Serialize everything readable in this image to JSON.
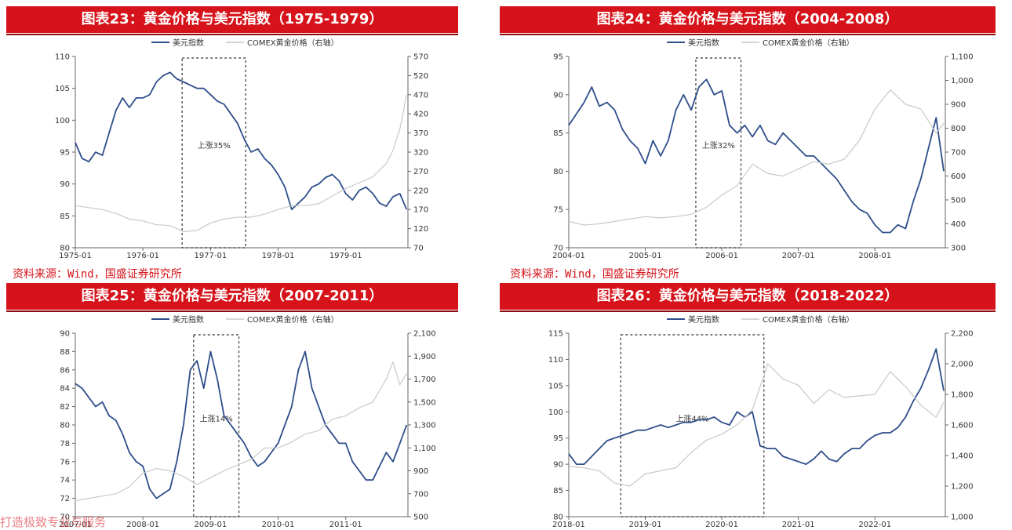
{
  "sources": [
    "资料来源：Wind，国盛证券研究所",
    "资料来源：Wind，国盛证券研究所"
  ],
  "footer": "打造极致专业与服务",
  "colors": {
    "usd": "#2e4d8a",
    "gold": "#c9c9c9",
    "banner": "#d6131a"
  },
  "chart_data": [
    {
      "type": "line",
      "title": "图表23：黄金价格与美元指数（1975-1979）",
      "legend": [
        "美元指数",
        "COMEX黄金价格（右轴）"
      ],
      "legend_position": "top-center",
      "x_range": [
        1975.0,
        1979.92
      ],
      "x_ticks": [
        {
          "v": 1975.0,
          "label": "1975-01"
        },
        {
          "v": 1976.0,
          "label": "1976-01"
        },
        {
          "v": 1977.0,
          "label": "1977-01"
        },
        {
          "v": 1978.0,
          "label": "1978-01"
        },
        {
          "v": 1979.0,
          "label": "1979-01"
        }
      ],
      "ylim": [
        80,
        110
      ],
      "y_ticks": [
        80,
        85,
        90,
        95,
        100,
        105,
        110
      ],
      "y2lim": [
        70,
        570
      ],
      "y2_ticks": [
        70,
        120,
        170,
        220,
        270,
        320,
        370,
        420,
        470,
        520,
        570
      ],
      "grid": false,
      "series": [
        {
          "name": "美元指数",
          "axis": "left",
          "x": [
            1975.0,
            1975.1,
            1975.2,
            1975.3,
            1975.4,
            1975.5,
            1975.6,
            1975.7,
            1975.8,
            1975.9,
            1976.0,
            1976.1,
            1976.2,
            1976.3,
            1976.4,
            1976.5,
            1976.6,
            1976.7,
            1976.8,
            1976.9,
            1977.0,
            1977.1,
            1977.2,
            1977.3,
            1977.4,
            1977.5,
            1977.6,
            1977.7,
            1977.8,
            1977.9,
            1978.0,
            1978.1,
            1978.2,
            1978.3,
            1978.4,
            1978.5,
            1978.6,
            1978.7,
            1978.8,
            1978.9,
            1979.0,
            1979.1,
            1979.2,
            1979.3,
            1979.4,
            1979.5,
            1979.6,
            1979.7,
            1979.8,
            1979.9
          ],
          "y": [
            96.5,
            94,
            93.5,
            95,
            94.5,
            98,
            101.5,
            103.5,
            102,
            103.5,
            103.5,
            104,
            106,
            107,
            107.5,
            106.5,
            106,
            105.5,
            105,
            105,
            104,
            103,
            102.5,
            101,
            99.5,
            97,
            95,
            95.5,
            94,
            93,
            91.5,
            89.5,
            86,
            87,
            88,
            89.5,
            90,
            91,
            91.5,
            90.5,
            88.5,
            87.5,
            89,
            89.5,
            88.5,
            87,
            86.5,
            88,
            88.5,
            86
          ]
        },
        {
          "name": "COMEX黄金价格（右轴）",
          "axis": "right",
          "x": [
            1975.0,
            1975.2,
            1975.4,
            1975.6,
            1975.8,
            1976.0,
            1976.2,
            1976.4,
            1976.6,
            1976.8,
            1977.0,
            1977.2,
            1977.4,
            1977.6,
            1977.8,
            1978.0,
            1978.2,
            1978.4,
            1978.6,
            1978.8,
            1979.0,
            1979.2,
            1979.4,
            1979.6,
            1979.7,
            1979.8,
            1979.9
          ],
          "y": [
            180,
            175,
            170,
            160,
            145,
            140,
            130,
            128,
            112,
            115,
            135,
            145,
            150,
            150,
            158,
            170,
            180,
            180,
            185,
            205,
            225,
            240,
            255,
            290,
            325,
            380,
            470
          ]
        }
      ],
      "annotations": [
        {
          "text": "上涨35%",
          "box": [
            1976.58,
            1977.52
          ]
        }
      ]
    },
    {
      "type": "line",
      "title": "图表24：黄金价格与美元指数（2004-2008）",
      "legend": [
        "美元指数",
        "COMEX黄金价格（右轴）"
      ],
      "legend_position": "top-center",
      "x_range": [
        2004.0,
        2008.92
      ],
      "x_ticks": [
        {
          "v": 2004.0,
          "label": "2004-01"
        },
        {
          "v": 2005.0,
          "label": "2005-01"
        },
        {
          "v": 2006.0,
          "label": "2006-01"
        },
        {
          "v": 2007.0,
          "label": "2007-01"
        },
        {
          "v": 2008.0,
          "label": "2008-01"
        }
      ],
      "ylim": [
        70,
        95
      ],
      "y_ticks": [
        70,
        75,
        80,
        85,
        90,
        95
      ],
      "y2lim": [
        300,
        1100
      ],
      "y2_ticks": [
        "300",
        "400",
        "500",
        "600",
        "700",
        "800",
        "900",
        "1,000",
        "1,100"
      ],
      "grid": false,
      "series": [
        {
          "name": "美元指数",
          "axis": "left",
          "x": [
            2004.0,
            2004.1,
            2004.2,
            2004.3,
            2004.4,
            2004.5,
            2004.6,
            2004.7,
            2004.8,
            2004.9,
            2005.0,
            2005.1,
            2005.2,
            2005.3,
            2005.4,
            2005.5,
            2005.6,
            2005.7,
            2005.8,
            2005.9,
            2006.0,
            2006.1,
            2006.2,
            2006.3,
            2006.4,
            2006.5,
            2006.6,
            2006.7,
            2006.8,
            2006.9,
            2007.0,
            2007.1,
            2007.2,
            2007.3,
            2007.4,
            2007.5,
            2007.6,
            2007.7,
            2007.8,
            2007.9,
            2008.0,
            2008.1,
            2008.2,
            2008.3,
            2008.4,
            2008.5,
            2008.6,
            2008.7,
            2008.8,
            2008.9
          ],
          "y": [
            86,
            87.5,
            89,
            91,
            88.5,
            89,
            88,
            85.5,
            84,
            83,
            81,
            84,
            82,
            84,
            88,
            90,
            88,
            91,
            92,
            90,
            90.5,
            86,
            85,
            86,
            84.5,
            86,
            84,
            83.5,
            85,
            84,
            83,
            82,
            82,
            81,
            80,
            79,
            77.5,
            76,
            75,
            74.5,
            73,
            72,
            72,
            73,
            72.5,
            76,
            79,
            83,
            87,
            80
          ]
        },
        {
          "name": "COMEX黄金价格（右轴）",
          "axis": "right",
          "x": [
            2004.0,
            2004.2,
            2004.4,
            2004.6,
            2004.8,
            2005.0,
            2005.2,
            2005.4,
            2005.6,
            2005.8,
            2006.0,
            2006.2,
            2006.4,
            2006.6,
            2006.8,
            2007.0,
            2007.2,
            2007.4,
            2007.6,
            2007.8,
            2008.0,
            2008.2,
            2008.4,
            2008.6,
            2008.8,
            2008.9
          ],
          "y": [
            410,
            395,
            400,
            410,
            420,
            430,
            425,
            430,
            440,
            470,
            520,
            560,
            650,
            610,
            600,
            630,
            660,
            650,
            670,
            750,
            880,
            960,
            900,
            880,
            780,
            820
          ]
        }
      ],
      "annotations": [
        {
          "text": "上涨32%",
          "box": [
            2005.66,
            2006.25
          ]
        }
      ]
    },
    {
      "type": "line",
      "title": "图表25：黄金价格与美元指数（2007-2011）",
      "legend": [
        "美元指数",
        "COMEX黄金价格（右轴）"
      ],
      "legend_position": "top-center",
      "x_range": [
        2007.0,
        2011.92
      ],
      "x_ticks": [
        {
          "v": 2007.0,
          "label": "2007-01"
        },
        {
          "v": 2008.0,
          "label": "2008-01"
        },
        {
          "v": 2009.0,
          "label": "2009-01"
        },
        {
          "v": 2010.0,
          "label": "2010-01"
        },
        {
          "v": 2011.0,
          "label": "2011-01"
        }
      ],
      "ylim": [
        70,
        90
      ],
      "y_ticks": [
        70,
        72,
        74,
        76,
        78,
        80,
        82,
        84,
        86,
        88,
        90
      ],
      "y2lim": [
        500,
        2100
      ],
      "y2_ticks": [
        "500",
        "700",
        "900",
        "1,100",
        "1,300",
        "1,500",
        "1,700",
        "1,900",
        "2,100"
      ],
      "grid": false,
      "series": [
        {
          "name": "美元指数",
          "axis": "left",
          "x": [
            2007.0,
            2007.1,
            2007.2,
            2007.3,
            2007.4,
            2007.5,
            2007.6,
            2007.7,
            2007.8,
            2007.9,
            2008.0,
            2008.1,
            2008.2,
            2008.3,
            2008.4,
            2008.5,
            2008.6,
            2008.7,
            2008.8,
            2008.9,
            2009.0,
            2009.1,
            2009.2,
            2009.3,
            2009.4,
            2009.5,
            2009.6,
            2009.7,
            2009.8,
            2009.9,
            2010.0,
            2010.1,
            2010.2,
            2010.3,
            2010.4,
            2010.5,
            2010.6,
            2010.7,
            2010.8,
            2010.9,
            2011.0,
            2011.1,
            2011.2,
            2011.3,
            2011.4,
            2011.5,
            2011.6,
            2011.7,
            2011.8,
            2011.9
          ],
          "y": [
            84.5,
            84,
            83,
            82,
            82.5,
            81,
            80.5,
            79,
            77,
            76,
            75.5,
            73,
            72,
            72.5,
            73,
            76,
            80,
            86,
            87,
            84,
            88,
            85,
            81,
            80,
            79,
            78,
            76.5,
            75.5,
            76,
            77,
            78,
            80,
            82,
            86,
            88,
            84,
            82,
            80,
            79,
            78,
            78,
            76,
            75,
            74,
            74,
            75.5,
            77,
            76,
            78,
            80
          ]
        },
        {
          "name": "COMEX黄金价格（右轴）",
          "axis": "right",
          "x": [
            2007.0,
            2007.2,
            2007.4,
            2007.6,
            2007.8,
            2008.0,
            2008.2,
            2008.4,
            2008.6,
            2008.8,
            2009.0,
            2009.2,
            2009.4,
            2009.6,
            2009.8,
            2010.0,
            2010.2,
            2010.4,
            2010.6,
            2010.8,
            2011.0,
            2011.2,
            2011.4,
            2011.6,
            2011.7,
            2011.8,
            2011.9
          ],
          "y": [
            640,
            660,
            680,
            700,
            760,
            880,
            920,
            900,
            850,
            780,
            840,
            900,
            950,
            1000,
            1100,
            1100,
            1150,
            1220,
            1250,
            1350,
            1380,
            1450,
            1500,
            1700,
            1850,
            1650,
            1750
          ]
        }
      ],
      "annotations": [
        {
          "text": "上涨14%",
          "box": [
            2008.75,
            2009.42
          ]
        }
      ]
    },
    {
      "type": "line",
      "title": "图表26：黄金价格与美元指数（2018-2022）",
      "legend": [
        "美元指数",
        "COMEX黄金价格（右轴）"
      ],
      "legend_position": "top-center",
      "x_range": [
        2018.0,
        2022.92
      ],
      "x_ticks": [
        {
          "v": 2018.0,
          "label": "2018-01"
        },
        {
          "v": 2019.0,
          "label": "2019-01"
        },
        {
          "v": 2020.0,
          "label": "2020-01"
        },
        {
          "v": 2021.0,
          "label": "2021-01"
        },
        {
          "v": 2022.0,
          "label": "2022-01"
        }
      ],
      "ylim": [
        80,
        115
      ],
      "y_ticks": [
        80,
        85,
        90,
        95,
        100,
        105,
        110,
        115
      ],
      "y2lim": [
        1000,
        2200
      ],
      "y2_ticks": [
        "1,000",
        "1,200",
        "1,400",
        "1,600",
        "1,800",
        "2,000",
        "2,200"
      ],
      "grid": false,
      "series": [
        {
          "name": "美元指数",
          "axis": "left",
          "x": [
            2018.0,
            2018.1,
            2018.2,
            2018.3,
            2018.4,
            2018.5,
            2018.6,
            2018.7,
            2018.8,
            2018.9,
            2019.0,
            2019.1,
            2019.2,
            2019.3,
            2019.4,
            2019.5,
            2019.6,
            2019.7,
            2019.8,
            2019.9,
            2020.0,
            2020.1,
            2020.2,
            2020.3,
            2020.4,
            2020.5,
            2020.6,
            2020.7,
            2020.8,
            2020.9,
            2021.0,
            2021.1,
            2021.2,
            2021.3,
            2021.4,
            2021.5,
            2021.6,
            2021.7,
            2021.8,
            2021.9,
            2022.0,
            2022.1,
            2022.2,
            2022.3,
            2022.4,
            2022.5,
            2022.6,
            2022.7,
            2022.8,
            2022.9
          ],
          "y": [
            92,
            90,
            90,
            91.5,
            93,
            94.5,
            95,
            95.5,
            96,
            96.5,
            96.5,
            97,
            97.5,
            97,
            97.5,
            98,
            98,
            98.5,
            98.5,
            99,
            98,
            97.5,
            100,
            99,
            100,
            93.5,
            93,
            93,
            91.5,
            91,
            90.5,
            90,
            91,
            92.5,
            91,
            90.5,
            92,
            93,
            93,
            94.5,
            95.5,
            96,
            96,
            97,
            99,
            102,
            104.5,
            108,
            112,
            104
          ]
        },
        {
          "name": "COMEX黄金价格（右轴）",
          "axis": "right",
          "x": [
            2018.0,
            2018.2,
            2018.4,
            2018.6,
            2018.8,
            2019.0,
            2019.2,
            2019.4,
            2019.6,
            2019.8,
            2020.0,
            2020.2,
            2020.4,
            2020.6,
            2020.8,
            2021.0,
            2021.2,
            2021.4,
            2021.6,
            2021.8,
            2022.0,
            2022.2,
            2022.4,
            2022.6,
            2022.8,
            2022.9
          ],
          "y": [
            1330,
            1320,
            1300,
            1220,
            1200,
            1280,
            1300,
            1320,
            1420,
            1500,
            1540,
            1600,
            1700,
            2000,
            1900,
            1860,
            1740,
            1830,
            1780,
            1790,
            1800,
            1950,
            1850,
            1730,
            1650,
            1750
          ]
        }
      ],
      "annotations": [
        {
          "text": "上涨44%",
          "box": [
            2018.68,
            2020.55
          ]
        }
      ]
    }
  ]
}
